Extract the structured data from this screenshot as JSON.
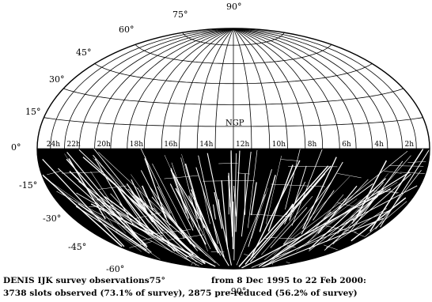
{
  "map": {
    "projection": "aitoff-hammer equal-area",
    "fill_color": "#000000",
    "grid_color": "#000000",
    "background": "#ffffff",
    "coverage": "southern-hemisphere observed strips",
    "pole_label": "NGP",
    "latitude_labels": [
      "90°",
      "75°",
      "60°",
      "45°",
      "30°",
      "15°",
      "0°",
      "-15°",
      "-30°",
      "-45°",
      "-60°",
      "-90°"
    ],
    "latitude_values": [
      90,
      75,
      60,
      45,
      30,
      15,
      0,
      -15,
      -30,
      -45,
      -60,
      -90
    ],
    "ra_labels": [
      "24h",
      "22h",
      "20h",
      "18h",
      "16h",
      "14h",
      "12h",
      "10h",
      "8h",
      "6h",
      "4h",
      "2h"
    ],
    "ra_values": [
      24,
      22,
      20,
      18,
      16,
      14,
      12,
      10,
      8,
      6,
      4,
      2
    ]
  },
  "caption": {
    "line1_prefix": "DENIS IJK survey observations",
    "line1_overlap": "75°",
    "line1_suffix": "from 8 Dec 1995 to 22 Feb 2000:",
    "line2": "3738 slots observed (73.1% of survey), 2875 pre-reduced (56.2% of survey)"
  }
}
